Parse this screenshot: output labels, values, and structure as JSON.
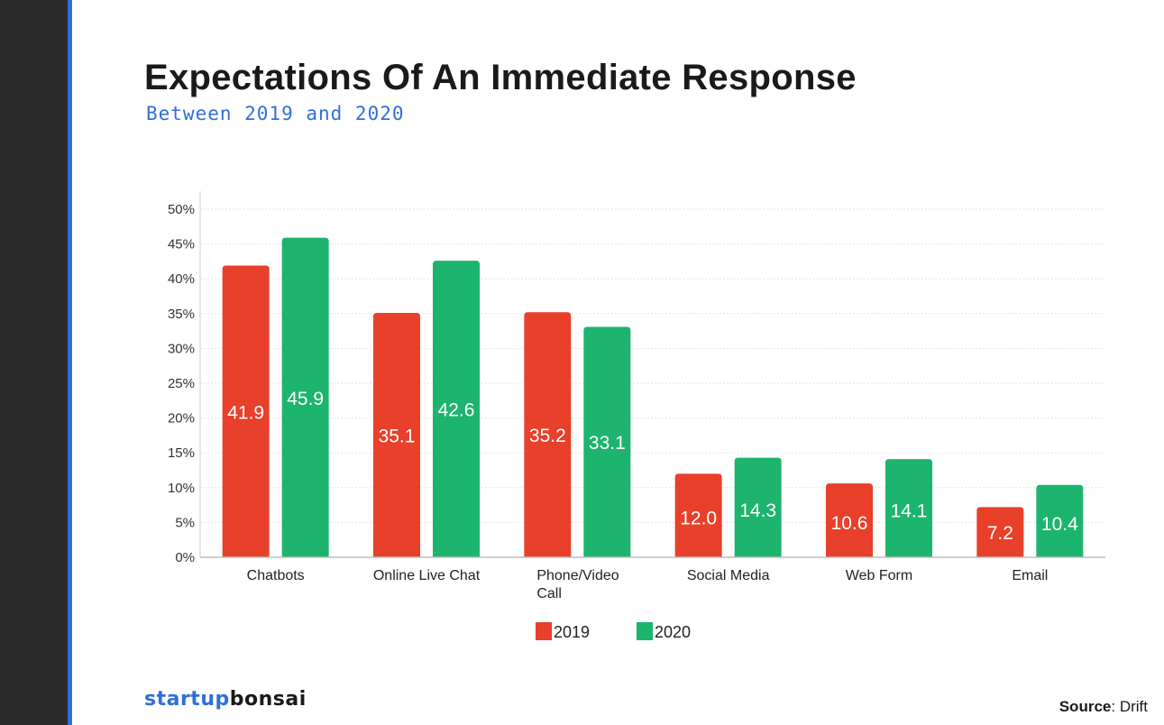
{
  "title": "Expectations Of An Immediate Response",
  "subtitle": "Between 2019 and 2020",
  "brand": {
    "part1": "startup",
    "part2": "bonsai"
  },
  "source": {
    "label": "Source",
    "sep": ":",
    "value": "Drift"
  },
  "colors": {
    "2019": "#e8402a",
    "2020": "#1db46e",
    "accent": "#2f6fdc"
  },
  "chart_data": {
    "type": "bar",
    "categories": [
      "Chatbots",
      "Online Live Chat",
      "Phone/Video Call",
      "Social Media",
      "Web Form",
      "Email"
    ],
    "category_lines": [
      [
        "Chatbots"
      ],
      [
        "Online Live Chat"
      ],
      [
        "Phone/Video",
        "Call"
      ],
      [
        "Social Media"
      ],
      [
        "Web Form"
      ],
      [
        "Email"
      ]
    ],
    "series": [
      {
        "name": "2019",
        "values": [
          41.9,
          35.1,
          35.2,
          12.0,
          10.6,
          7.2
        ],
        "labels": [
          "41.9",
          "35.1",
          "35.2",
          "12.0",
          "10.6",
          "7.2"
        ]
      },
      {
        "name": "2020",
        "values": [
          45.9,
          42.6,
          33.1,
          14.3,
          14.1,
          10.4
        ],
        "labels": [
          "45.9",
          "42.6",
          "33.1",
          "14.3",
          "14.1",
          "10.4"
        ]
      }
    ],
    "y_ticks": [
      "0%",
      "5%",
      "10%",
      "15%",
      "20%",
      "25%",
      "30%",
      "35%",
      "40%",
      "45%",
      "50%"
    ],
    "ylim": [
      0,
      50
    ],
    "grid": true,
    "legend": "bottom-center"
  }
}
